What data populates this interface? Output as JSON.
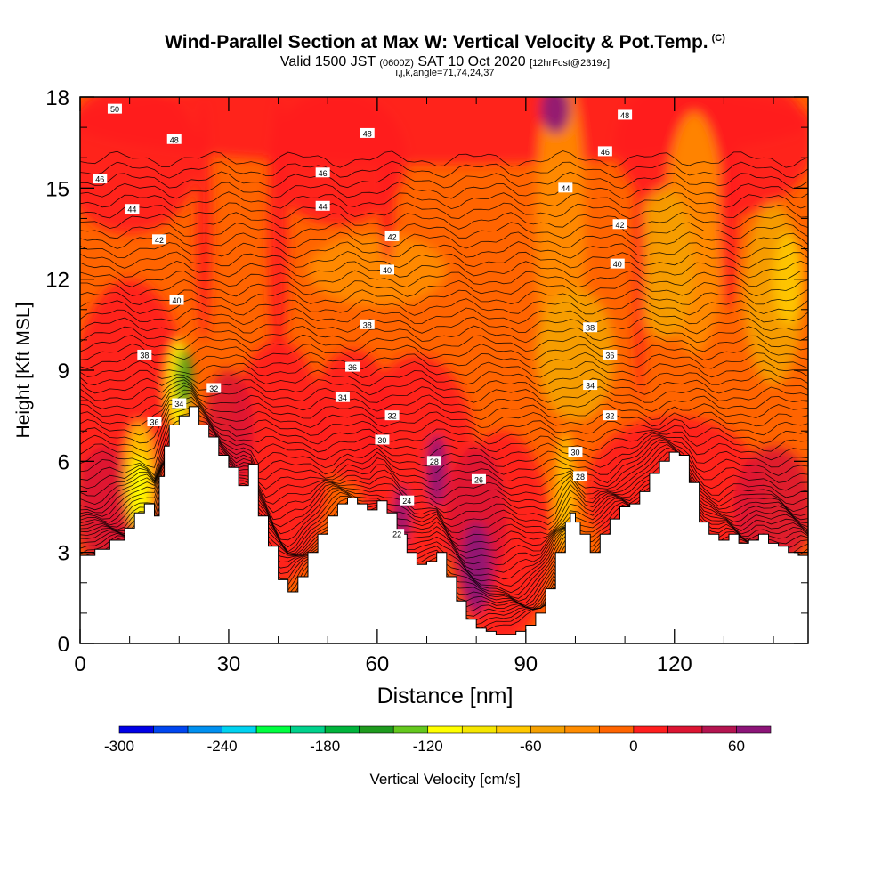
{
  "header": {
    "title": "Wind-Parallel Section at Max W: Vertical Velocity & Pot.Temp.",
    "copyright": "(C)",
    "valid_prefix": "Valid 1500 JST",
    "valid_utc": "(0600Z)",
    "valid_date": "SAT 10 Oct 2020",
    "forecast": "[12hrFcst@2319z]",
    "grid_info": "i,j,k,angle=71,74,24,37"
  },
  "chart_data": {
    "type": "heatmap",
    "title": "Wind-Parallel Section at Max W: Vertical Velocity & Pot.Temp.",
    "xlabel": "Distance [nm]",
    "ylabel": "Height [Kft MSL]",
    "xlim": [
      0,
      147
    ],
    "ylim": [
      0,
      18
    ],
    "xticks": [
      0,
      30,
      60,
      90,
      120
    ],
    "yticks": [
      0,
      3,
      6,
      9,
      12,
      15,
      18
    ],
    "grid": false,
    "terrain": {
      "x": [
        0,
        3,
        6,
        9,
        11,
        13,
        15,
        16,
        17,
        18,
        20,
        22,
        24,
        26,
        28,
        30,
        32,
        34,
        36,
        38,
        40,
        42,
        44,
        46,
        48,
        50,
        52,
        54,
        56,
        58,
        60,
        62,
        64,
        66,
        68,
        70,
        72,
        74,
        76,
        78,
        80,
        82,
        84,
        86,
        88,
        90,
        92,
        94,
        96,
        98,
        99,
        100,
        101,
        103,
        105,
        107,
        109,
        111,
        113,
        115,
        117,
        119,
        121,
        123,
        125,
        127,
        129,
        131,
        133,
        135,
        137,
        139,
        141,
        143,
        145,
        147
      ],
      "y": [
        2.9,
        3.1,
        3.4,
        3.8,
        4.3,
        4.6,
        4.2,
        5.5,
        6.5,
        7.2,
        7.5,
        7.8,
        7.2,
        6.8,
        6.2,
        5.8,
        5.2,
        5.9,
        4.2,
        3.2,
        2.1,
        1.7,
        2.2,
        3.0,
        3.6,
        4.2,
        4.6,
        4.8,
        4.6,
        4.4,
        4.7,
        4.3,
        3.6,
        3.0,
        2.6,
        2.7,
        3.0,
        2.2,
        1.4,
        0.8,
        0.5,
        0.4,
        0.3,
        0.3,
        0.4,
        0.6,
        1.0,
        1.8,
        3.0,
        4.0,
        4.3,
        4.0,
        3.6,
        3.0,
        3.6,
        4.1,
        4.5,
        4.6,
        5.0,
        5.6,
        6.0,
        6.3,
        6.2,
        5.3,
        4.0,
        3.6,
        3.4,
        3.6,
        3.3,
        3.4,
        3.6,
        3.3,
        3.2,
        3.0,
        2.9,
        2.8
      ]
    },
    "colorbar": {
      "label": "Vertical Velocity [cm/s]",
      "tick_values": [
        -300,
        -240,
        -180,
        -120,
        -60,
        0,
        60
      ],
      "tick_labels": [
        "-300",
        "-240",
        "-180",
        "-120",
        "-60",
        "0",
        "60"
      ],
      "bins": [
        -300,
        -280,
        -260,
        -240,
        -220,
        -200,
        -180,
        -160,
        -140,
        -120,
        -100,
        -80,
        -60,
        -40,
        -20,
        0,
        20,
        40,
        60,
        80
      ],
      "colors": [
        "#0000e6",
        "#0046f0",
        "#0090f0",
        "#00d2f0",
        "#00ff40",
        "#00d28c",
        "#00b43c",
        "#1e9b1e",
        "#64c81e",
        "#ffff00",
        "#f5e600",
        "#ffc800",
        "#f5a000",
        "#ff8c00",
        "#ff6400",
        "#ff1e1e",
        "#dc1432",
        "#b41450",
        "#8c1478"
      ]
    },
    "field_colors": {
      "upward": "#dc1432",
      "strong_upward": "#8c1478",
      "neutral": "#ff1e1e",
      "weak_down": "#ff6400",
      "moderate_down": "#ff8c00",
      "down": "#f5a000",
      "strong_down": "#ffc800",
      "very_strong_down": "#ffff00",
      "extreme_down": "#1e9b1e"
    },
    "theta_contours": {
      "levels": [
        22,
        24,
        26,
        28,
        30,
        32,
        34,
        36,
        38,
        40,
        42,
        44,
        46,
        48,
        50
      ],
      "labeled": [
        {
          "x": 7,
          "y": 17.6,
          "text": "50"
        },
        {
          "x": 19,
          "y": 16.6,
          "text": "48"
        },
        {
          "x": 4,
          "y": 15.3,
          "text": "46"
        },
        {
          "x": 10.5,
          "y": 14.3,
          "text": "44"
        },
        {
          "x": 16,
          "y": 13.3,
          "text": "42"
        },
        {
          "x": 19.5,
          "y": 11.3,
          "text": "40"
        },
        {
          "x": 13,
          "y": 9.5,
          "text": "38"
        },
        {
          "x": 15,
          "y": 7.3,
          "text": "36"
        },
        {
          "x": 20,
          "y": 7.9,
          "text": "34"
        },
        {
          "x": 27,
          "y": 8.4,
          "text": "32"
        },
        {
          "x": 58,
          "y": 16.8,
          "text": "48"
        },
        {
          "x": 49,
          "y": 15.5,
          "text": "46"
        },
        {
          "x": 49,
          "y": 14.4,
          "text": "44"
        },
        {
          "x": 63,
          "y": 13.4,
          "text": "42"
        },
        {
          "x": 62,
          "y": 12.3,
          "text": "40"
        },
        {
          "x": 58,
          "y": 10.5,
          "text": "38"
        },
        {
          "x": 55,
          "y": 9.1,
          "text": "36"
        },
        {
          "x": 53,
          "y": 8.1,
          "text": "34"
        },
        {
          "x": 63,
          "y": 7.5,
          "text": "32"
        },
        {
          "x": 61,
          "y": 6.7,
          "text": "30"
        },
        {
          "x": 71.5,
          "y": 6.0,
          "text": "28"
        },
        {
          "x": 80.5,
          "y": 5.4,
          "text": "26"
        },
        {
          "x": 66,
          "y": 4.7,
          "text": "24"
        },
        {
          "x": 64,
          "y": 3.6,
          "text": "22"
        },
        {
          "x": 110,
          "y": 17.4,
          "text": "48"
        },
        {
          "x": 106,
          "y": 16.2,
          "text": "46"
        },
        {
          "x": 98,
          "y": 15.0,
          "text": "44"
        },
        {
          "x": 109,
          "y": 13.8,
          "text": "42"
        },
        {
          "x": 108.5,
          "y": 12.5,
          "text": "40"
        },
        {
          "x": 103,
          "y": 10.4,
          "text": "38"
        },
        {
          "x": 107,
          "y": 9.5,
          "text": "36"
        },
        {
          "x": 103,
          "y": 8.5,
          "text": "34"
        },
        {
          "x": 107,
          "y": 7.5,
          "text": "32"
        },
        {
          "x": 100,
          "y": 6.3,
          "text": "30"
        },
        {
          "x": 101,
          "y": 5.5,
          "text": "28"
        }
      ]
    }
  }
}
